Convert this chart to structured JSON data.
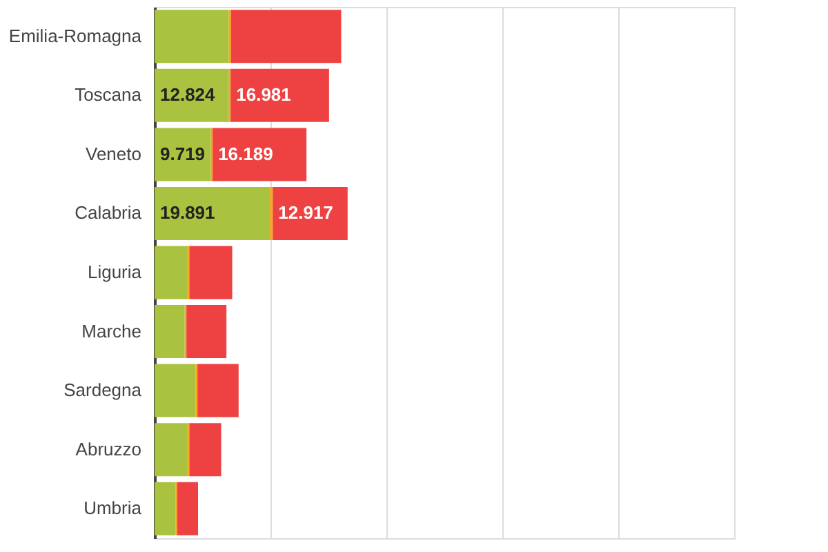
{
  "chart_data": {
    "type": "bar",
    "orientation": "horizontal",
    "stacked": true,
    "categories": [
      "Emilia-Romagna",
      "Toscana",
      "Veneto",
      "Calabria",
      "Liguria",
      "Marche",
      "Sardegna",
      "Abruzzo",
      "Umbria"
    ],
    "series": [
      {
        "color": "#a9c23f",
        "values": [
          12800,
          12824,
          9719,
          19891,
          5700,
          5200,
          7100,
          5700,
          3600
        ],
        "value_labels": [
          null,
          "12.824",
          "9.719",
          "19.891",
          null,
          null,
          null,
          null,
          null
        ]
      },
      {
        "color": "#f5a623",
        "values": [
          400,
          300,
          300,
          500,
          300,
          300,
          300,
          300,
          300
        ]
      },
      {
        "color": "#ee4242",
        "values": [
          19000,
          16981,
          16189,
          12917,
          7400,
          6900,
          7100,
          5500,
          3600
        ],
        "value_labels": [
          null,
          "16.981",
          "16.189",
          "12.917",
          null,
          null,
          null,
          null,
          null
        ]
      }
    ],
    "xlim": [
      0,
      100000
    ],
    "xticks": [
      {
        "value": 0,
        "label": null
      },
      {
        "value": 20000,
        "label": null
      },
      {
        "value": 40000,
        "label": null
      },
      {
        "value": 60000,
        "label": null
      },
      {
        "value": 80000,
        "label": null
      },
      {
        "value": 100000,
        "label": null
      }
    ],
    "grid": "x",
    "tick_labels": "y"
  }
}
